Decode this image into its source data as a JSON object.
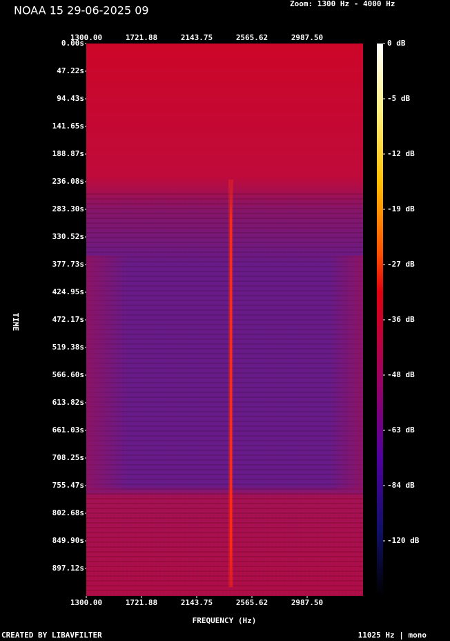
{
  "chart_data": {
    "type": "spectrogram",
    "title": "NOAA 15 29-06-2025 09",
    "subtitle": "Zoom: 1300 Hz - 4000 Hz",
    "x_label": "FREQUENCY (Hz)",
    "y_label": "TIME",
    "footer_left": "CREATED BY LIBAVFILTER",
    "footer_right": "11025 Hz | mono",
    "xlim": [
      1300,
      3414.6
    ],
    "xticks": [
      {
        "value": 1300,
        "label": "1300.00"
      },
      {
        "value": 1721.88,
        "label": "1721.88"
      },
      {
        "value": 2143.75,
        "label": "2143.75"
      },
      {
        "value": 2565.62,
        "label": "2565.62"
      },
      {
        "value": 2987.5,
        "label": "2987.50"
      }
    ],
    "ylim": [
      0,
      944.3
    ],
    "yticks": [
      {
        "value": 0,
        "label": "0.00s"
      },
      {
        "value": 47.22,
        "label": "47.22s"
      },
      {
        "value": 94.43,
        "label": "94.43s"
      },
      {
        "value": 141.65,
        "label": "141.65s"
      },
      {
        "value": 188.87,
        "label": "188.87s"
      },
      {
        "value": 236.08,
        "label": "236.08s"
      },
      {
        "value": 283.3,
        "label": "283.30s"
      },
      {
        "value": 330.52,
        "label": "330.52s"
      },
      {
        "value": 377.73,
        "label": "377.73s"
      },
      {
        "value": 424.95,
        "label": "424.95s"
      },
      {
        "value": 472.17,
        "label": "472.17s"
      },
      {
        "value": 519.38,
        "label": "519.38s"
      },
      {
        "value": 566.6,
        "label": "566.60s"
      },
      {
        "value": 613.82,
        "label": "613.82s"
      },
      {
        "value": 661.03,
        "label": "661.03s"
      },
      {
        "value": 708.25,
        "label": "708.25s"
      },
      {
        "value": 755.47,
        "label": "755.47s"
      },
      {
        "value": 802.68,
        "label": "802.68s"
      },
      {
        "value": 849.9,
        "label": "849.90s"
      },
      {
        "value": 897.12,
        "label": "897.12s"
      }
    ],
    "colorbar_ticks": [
      {
        "value": 0,
        "label": "0 dB"
      },
      {
        "value": -5,
        "label": "-5 dB"
      },
      {
        "value": -12,
        "label": "-12 dB"
      },
      {
        "value": -19,
        "label": "-19 dB"
      },
      {
        "value": -27,
        "label": "-27 dB"
      },
      {
        "value": -36,
        "label": "-36 dB"
      },
      {
        "value": -48,
        "label": "-48 dB"
      },
      {
        "value": -63,
        "label": "-63 dB"
      },
      {
        "value": -84,
        "label": "-84 dB"
      },
      {
        "value": -120,
        "label": "-120 dB"
      }
    ]
  }
}
